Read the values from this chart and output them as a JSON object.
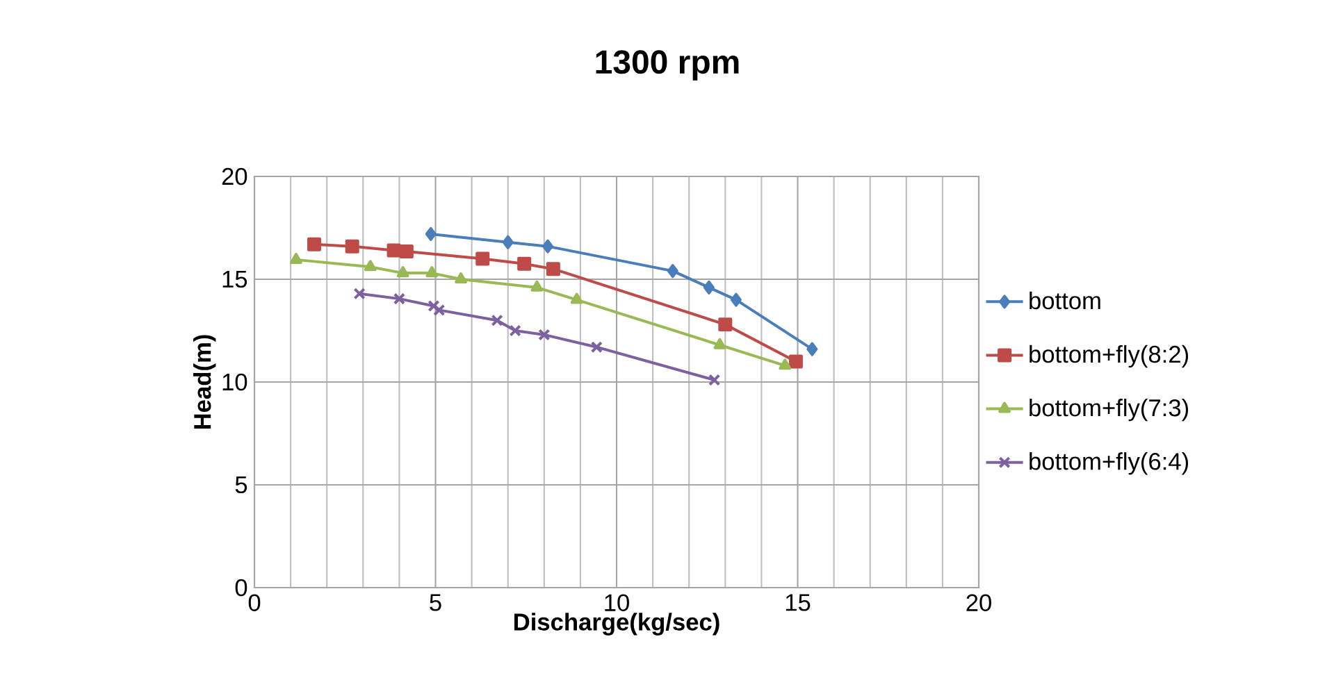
{
  "chart_data": {
    "type": "line",
    "title": "1300 rpm",
    "xlabel": "Discharge(kg/sec)",
    "ylabel": "Head(m)",
    "xlim": [
      0,
      20
    ],
    "xticks": [
      0,
      5,
      10,
      15,
      20
    ],
    "ylim": [
      0,
      20
    ],
    "yticks": [
      0,
      5,
      10,
      15,
      20
    ],
    "grid": true,
    "legend": "right",
    "series": [
      {
        "name": "bottom",
        "color": "#4a7ebb",
        "marker": "diamond",
        "x": [
          4.87,
          7.0,
          8.1,
          11.55,
          12.55,
          13.3,
          15.4
        ],
        "values": [
          17.2,
          16.8,
          16.6,
          15.4,
          14.6,
          14.0,
          11.6
        ]
      },
      {
        "name": "bottom+fly(8:2)",
        "color": "#be4b48",
        "marker": "square",
        "x": [
          1.65,
          2.7,
          3.85,
          4.2,
          6.3,
          7.45,
          8.25,
          13.0,
          14.95
        ],
        "values": [
          16.7,
          16.6,
          16.4,
          16.35,
          16.0,
          15.75,
          15.5,
          12.8,
          11.0
        ]
      },
      {
        "name": "bottom+fly(7:3)",
        "color": "#98b954",
        "marker": "triangle",
        "x": [
          1.15,
          3.2,
          4.1,
          4.9,
          5.7,
          7.8,
          8.9,
          12.85,
          14.65
        ],
        "values": [
          15.95,
          15.6,
          15.3,
          15.3,
          15.0,
          14.6,
          14.0,
          11.8,
          10.8
        ]
      },
      {
        "name": "bottom+fly(6:4)",
        "color": "#7d60a0",
        "marker": "cross",
        "x": [
          2.9,
          4.0,
          4.95,
          5.1,
          6.7,
          7.2,
          8.0,
          9.45,
          12.7
        ],
        "values": [
          14.3,
          14.05,
          13.7,
          13.5,
          13.0,
          12.5,
          12.3,
          11.7,
          10.1
        ]
      }
    ]
  }
}
